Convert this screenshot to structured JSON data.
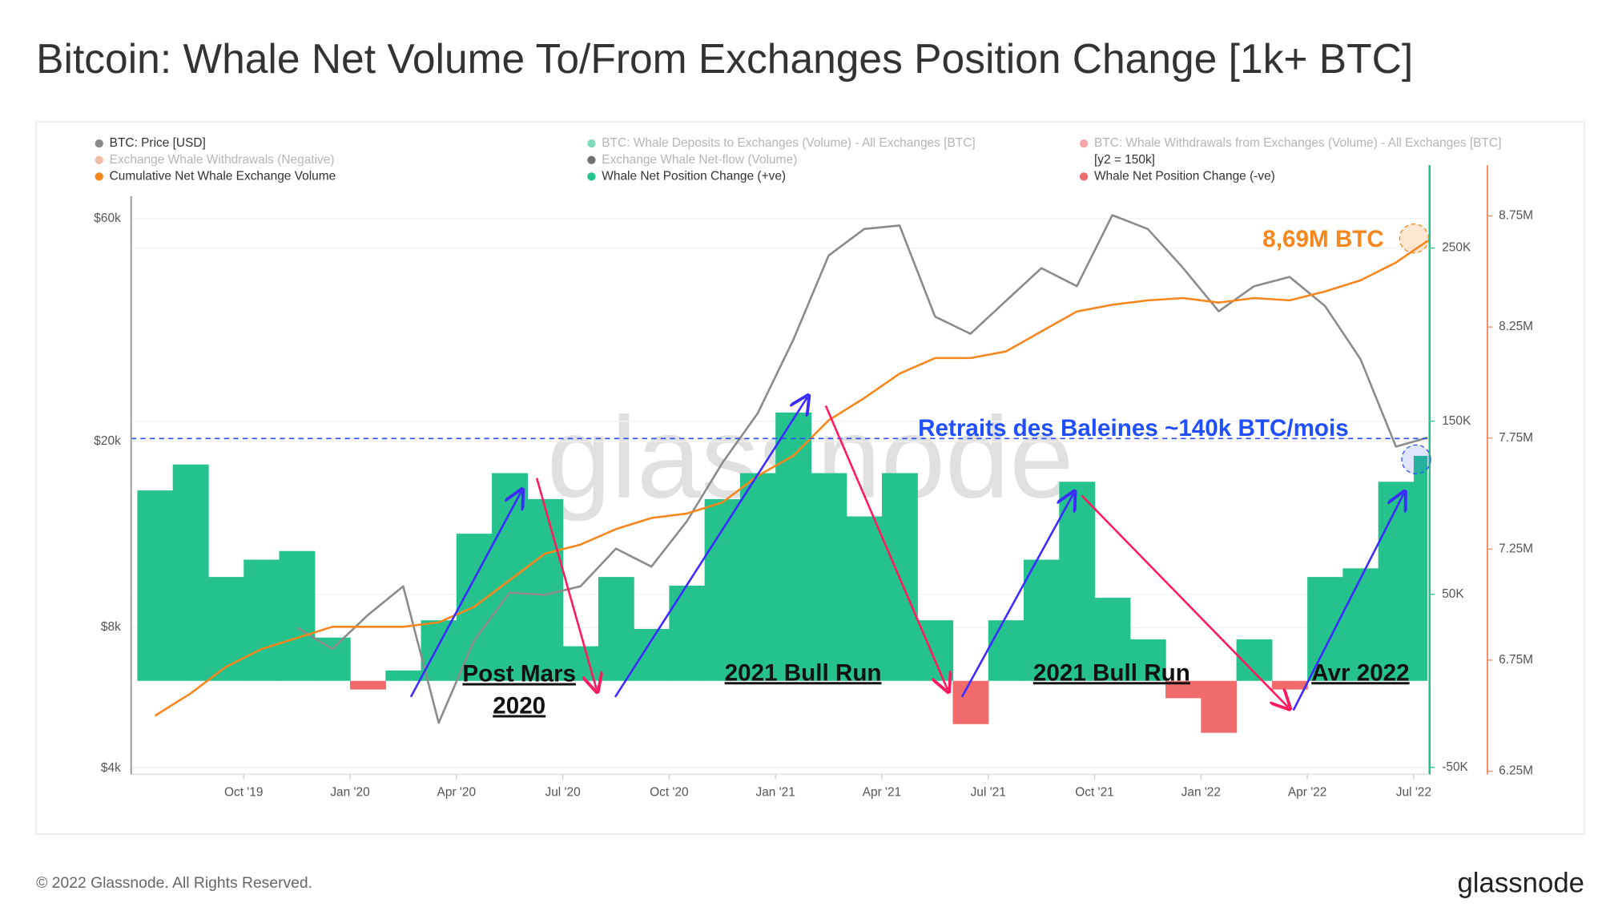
{
  "chart_data": {
    "type": "combo",
    "title": "Bitcoin: Whale Net Volume To/From Exchanges Position Change [1k+ BTC]",
    "footer": "© 2022 Glassnode. All Rights Reserved.",
    "brand": "glassnode",
    "watermark": "glassnode",
    "grid": true,
    "x": [
      "2019-07",
      "2019-08",
      "2019-09",
      "2019-10",
      "2019-11",
      "2019-12",
      "2020-01",
      "2020-02",
      "2020-03",
      "2020-04",
      "2020-05",
      "2020-06",
      "2020-07",
      "2020-08",
      "2020-09",
      "2020-10",
      "2020-11",
      "2020-12",
      "2021-01",
      "2021-02",
      "2021-03",
      "2021-04",
      "2021-05",
      "2021-06",
      "2021-07",
      "2021-08",
      "2021-09",
      "2021-10",
      "2021-11",
      "2021-12",
      "2022-01",
      "2022-02",
      "2022-03",
      "2022-04",
      "2022-05",
      "2022-06",
      "2022-07"
    ],
    "xticks": [
      {
        "value": "2019-10",
        "label": "Oct '19"
      },
      {
        "value": "2020-01",
        "label": "Jan '20"
      },
      {
        "value": "2020-04",
        "label": "Apr '20"
      },
      {
        "value": "2020-07",
        "label": "Jul '20"
      },
      {
        "value": "2020-10",
        "label": "Oct '20"
      },
      {
        "value": "2021-01",
        "label": "Jan '21"
      },
      {
        "value": "2021-04",
        "label": "Apr '21"
      },
      {
        "value": "2021-07",
        "label": "Jul '21"
      },
      {
        "value": "2021-10",
        "label": "Oct '21"
      },
      {
        "value": "2022-01",
        "label": "Jan '22"
      },
      {
        "value": "2022-04",
        "label": "Apr '22"
      },
      {
        "value": "2022-07",
        "label": "Jul '22"
      }
    ],
    "ylim": [
      3880,
      67000
    ],
    "ylog": true,
    "yticks": [
      {
        "value": 4000,
        "label": "$4k"
      },
      {
        "value": 8000,
        "label": "$8k"
      },
      {
        "value": 20000,
        "label": "$20k"
      },
      {
        "value": 60000,
        "label": "$60k"
      }
    ],
    "y2lim": [
      -54000,
      280000
    ],
    "y2ticks": [
      {
        "value": -50000,
        "label": "-50K"
      },
      {
        "value": 50000,
        "label": "50K"
      },
      {
        "value": 150000,
        "label": "150K"
      },
      {
        "value": 250000,
        "label": "250K"
      }
    ],
    "y2_color": "#26c28d",
    "y3lim": [
      6236000,
      8839000
    ],
    "y3ticks": [
      {
        "value": 6250000,
        "label": "6.25M"
      },
      {
        "value": 6750000,
        "label": "6.75M"
      },
      {
        "value": 7250000,
        "label": "7.25M"
      },
      {
        "value": 7750000,
        "label": "7.75M"
      },
      {
        "value": 8250000,
        "label": "8.25M"
      },
      {
        "value": 8750000,
        "label": "8.75M"
      }
    ],
    "y3_color": "#f08a5d",
    "series": [
      {
        "name": "BTC: Price [USD]",
        "color": "#8a8a8a",
        "axis": "y",
        "kind": "line",
        "values": [
          null,
          null,
          null,
          null,
          8000,
          7200,
          8500,
          9800,
          5000,
          7500,
          9500,
          9400,
          9800,
          11800,
          10800,
          13500,
          18000,
          23000,
          33000,
          50000,
          57000,
          58000,
          37000,
          34000,
          40000,
          47000,
          43000,
          61000,
          57000,
          47000,
          38000,
          43000,
          45000,
          39000,
          30000,
          19500,
          20500
        ]
      },
      {
        "name": "Cumulative Net Whale Exchange Volume",
        "color": "#f7861c",
        "axis": "y3",
        "kind": "line",
        "values": [
          6500000,
          6600000,
          6720000,
          6800000,
          6850000,
          6900000,
          6900000,
          6900000,
          6920000,
          6990000,
          7110000,
          7230000,
          7270000,
          7340000,
          7390000,
          7410000,
          7460000,
          7580000,
          7670000,
          7830000,
          7930000,
          8040000,
          8110000,
          8110000,
          8140000,
          8230000,
          8320000,
          8350000,
          8370000,
          8380000,
          8360000,
          8380000,
          8370000,
          8410000,
          8460000,
          8540000,
          8650000
        ]
      },
      {
        "name": "Whale Net Position Change (+ve)",
        "color": "#26c28d",
        "axis": "y2",
        "kind": "bar",
        "values": [
          110000,
          125000,
          60000,
          70000,
          75000,
          25000,
          null,
          6000,
          35000,
          85000,
          120000,
          105000,
          20000,
          60000,
          30000,
          55000,
          105000,
          120000,
          155000,
          120000,
          95000,
          120000,
          35000,
          null,
          35000,
          70000,
          115000,
          48000,
          24000,
          null,
          null,
          24000,
          null,
          60000,
          65000,
          115000,
          130000
        ]
      },
      {
        "name": "Whale Net Position Change (-ve)",
        "color": "#f06b6b",
        "axis": "y2",
        "kind": "bar",
        "values": [
          null,
          null,
          null,
          null,
          null,
          null,
          -5000,
          null,
          null,
          null,
          null,
          null,
          null,
          null,
          null,
          null,
          null,
          null,
          null,
          null,
          null,
          null,
          null,
          -25000,
          null,
          null,
          null,
          null,
          null,
          -10000,
          -30000,
          null,
          -5000,
          null,
          null,
          null,
          null
        ]
      }
    ],
    "legend": [
      {
        "series": 0
      },
      {
        "name": "BTC: Whale Deposits to Exchanges (Volume) - All Exchanges [BTC]",
        "color": "#26c28d",
        "inactive": true
      },
      {
        "name": "BTC: Whale Withdrawals from Exchanges (Volume) - All Exchanges [BTC]",
        "color": "#f06b6b",
        "inactive": true
      },
      {
        "name": "Exchange Whale Withdrawals (Negative)",
        "color": "#e8906b",
        "inactive": true
      },
      {
        "name": "Exchange Whale Net-flow (Volume)",
        "color": "#111111",
        "inactive": true
      },
      {
        "note": "[y2 = 150k]"
      },
      {
        "series": 1
      },
      {
        "series": 2
      },
      {
        "series": 3
      }
    ],
    "reference_line": {
      "axis": "y2",
      "value": 140000,
      "color": "#2a4dff"
    },
    "annotations": [
      {
        "text": "8,69M BTC",
        "color": "#f7861c"
      },
      {
        "text": "Retraits des Baleines ~140k BTC/mois",
        "color": "#1f4fff"
      },
      {
        "lines": [
          "Post Mars",
          "2020"
        ],
        "color": "#111111"
      },
      {
        "text": "2021 Bull Run",
        "color": "#111111"
      },
      {
        "text": "2021 Bull Run",
        "color": "#111111"
      },
      {
        "text": "Avr 2022",
        "color": "#111111"
      }
    ]
  }
}
